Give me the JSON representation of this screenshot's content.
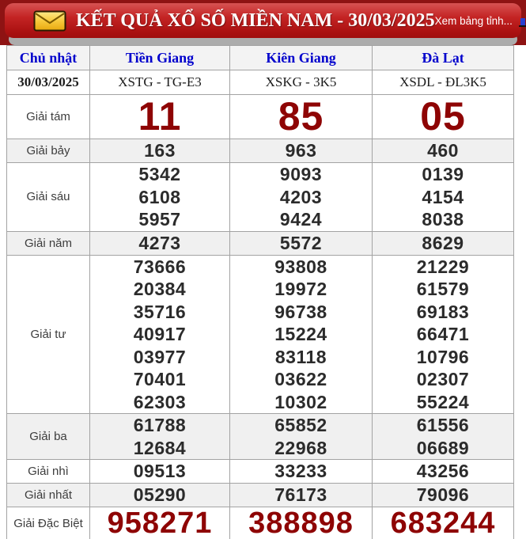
{
  "colors": {
    "header_red": "#C42424",
    "dark_red": "#8E0404",
    "link_blue": "#0000CC"
  },
  "header": {
    "title": "KẾT QUẢ XỔ SỐ MIỀN NAM - 30/03/2025",
    "link": "Xem bảng tỉnh...",
    "envelope_icon": "envelope-icon",
    "chart_icon": "bar-chart-icon"
  },
  "table": {
    "day_label": "Chủ nhật",
    "date": "30/03/2025",
    "provinces": [
      {
        "name": "Tiền Giang",
        "code": "XSTG - TG-E3"
      },
      {
        "name": "Kiên Giang",
        "code": "XSKG - 3K5"
      },
      {
        "name": "Đà Lạt",
        "code": "XSDL - ĐL3K5"
      }
    ],
    "prizes": [
      {
        "label": "Giải tám",
        "style": "r-tam",
        "values": [
          [
            "11"
          ],
          [
            "85"
          ],
          [
            "05"
          ]
        ]
      },
      {
        "label": "Giải bảy",
        "values": [
          [
            "163"
          ],
          [
            "963"
          ],
          [
            "460"
          ]
        ]
      },
      {
        "label": "Giải sáu",
        "values": [
          [
            "5342",
            "6108",
            "5957"
          ],
          [
            "9093",
            "4203",
            "9424"
          ],
          [
            "0139",
            "4154",
            "8038"
          ]
        ]
      },
      {
        "label": "Giải năm",
        "values": [
          [
            "4273"
          ],
          [
            "5572"
          ],
          [
            "8629"
          ]
        ]
      },
      {
        "label": "Giải tư",
        "values": [
          [
            "73666",
            "20384",
            "35716",
            "40917",
            "03977",
            "70401",
            "62303"
          ],
          [
            "93808",
            "19972",
            "96738",
            "15224",
            "83118",
            "03622",
            "10302"
          ],
          [
            "21229",
            "61579",
            "69183",
            "66471",
            "10796",
            "02307",
            "55224"
          ]
        ]
      },
      {
        "label": "Giải ba",
        "values": [
          [
            "61788",
            "12684"
          ],
          [
            "65852",
            "22968"
          ],
          [
            "61556",
            "06689"
          ]
        ]
      },
      {
        "label": "Giải nhì",
        "values": [
          [
            "09513"
          ],
          [
            "33233"
          ],
          [
            "43256"
          ]
        ]
      },
      {
        "label": "Giải nhất",
        "values": [
          [
            "05290"
          ],
          [
            "76173"
          ],
          [
            "79096"
          ]
        ]
      },
      {
        "label": "Giải Đặc Biệt",
        "style": "r-db",
        "values": [
          [
            "958271"
          ],
          [
            "388898"
          ],
          [
            "683244"
          ]
        ]
      }
    ]
  }
}
